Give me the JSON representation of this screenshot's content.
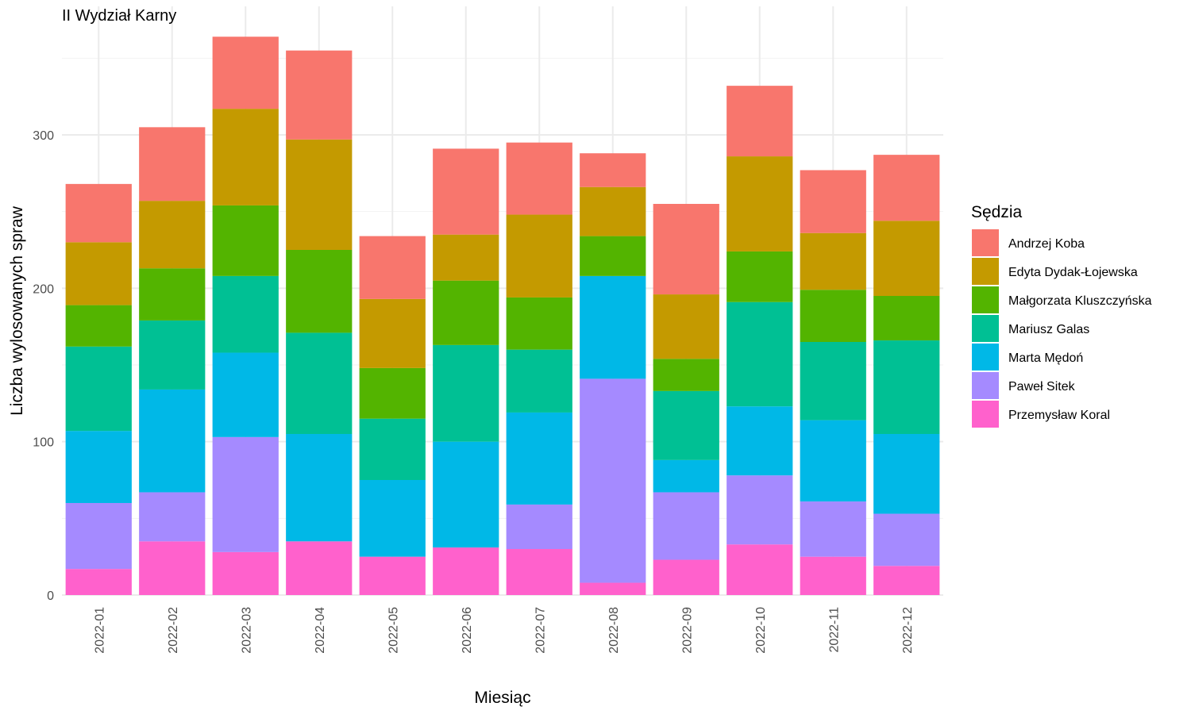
{
  "chart_data": {
    "type": "bar",
    "stacked": true,
    "title": "II Wydział Karny",
    "xlabel": "Miesiąc",
    "ylabel": "Liczba wylosowanych spraw",
    "ylim": [
      0,
      380
    ],
    "yticks": [
      0,
      100,
      200,
      300
    ],
    "grid": true,
    "legend_title": "Sędzia",
    "legend_position": "right",
    "categories": [
      "2022-01",
      "2022-02",
      "2022-03",
      "2022-04",
      "2022-05",
      "2022-06",
      "2022-07",
      "2022-08",
      "2022-09",
      "2022-10",
      "2022-11",
      "2022-12"
    ],
    "series": [
      {
        "name": "Przemysław Koral",
        "color": "#FF61CC",
        "values": [
          17,
          35,
          28,
          35,
          25,
          31,
          30,
          8,
          23,
          33,
          25,
          19
        ]
      },
      {
        "name": "Paweł Sitek",
        "color": "#A58AFF",
        "values": [
          43,
          32,
          75,
          0,
          0,
          0,
          29,
          133,
          44,
          45,
          36,
          34
        ]
      },
      {
        "name": "Marta Mędoń",
        "color": "#00B8E7",
        "values": [
          47,
          67,
          55,
          70,
          50,
          69,
          60,
          67,
          21,
          45,
          53,
          52
        ]
      },
      {
        "name": "Mariusz Galas",
        "color": "#00C094",
        "values": [
          55,
          45,
          50,
          66,
          40,
          63,
          41,
          0,
          45,
          68,
          51,
          61
        ]
      },
      {
        "name": "Małgorzata Kluszczyńska",
        "color": "#53B400",
        "values": [
          27,
          34,
          46,
          54,
          33,
          42,
          34,
          26,
          21,
          33,
          34,
          29
        ]
      },
      {
        "name": "Edyta Dydak-Łojewska",
        "color": "#C49A00",
        "values": [
          41,
          44,
          63,
          72,
          45,
          30,
          54,
          32,
          42,
          62,
          37,
          49
        ]
      },
      {
        "name": "Andrzej Koba",
        "color": "#F8766D",
        "values": [
          38,
          48,
          47,
          58,
          41,
          56,
          47,
          22,
          59,
          46,
          41,
          43
        ]
      }
    ],
    "legend_order": [
      "Andrzej Koba",
      "Edyta Dydak-Łojewska",
      "Małgorzata Kluszczyńska",
      "Mariusz Galas",
      "Marta Mędoń",
      "Paweł Sitek",
      "Przemysław Koral"
    ]
  }
}
